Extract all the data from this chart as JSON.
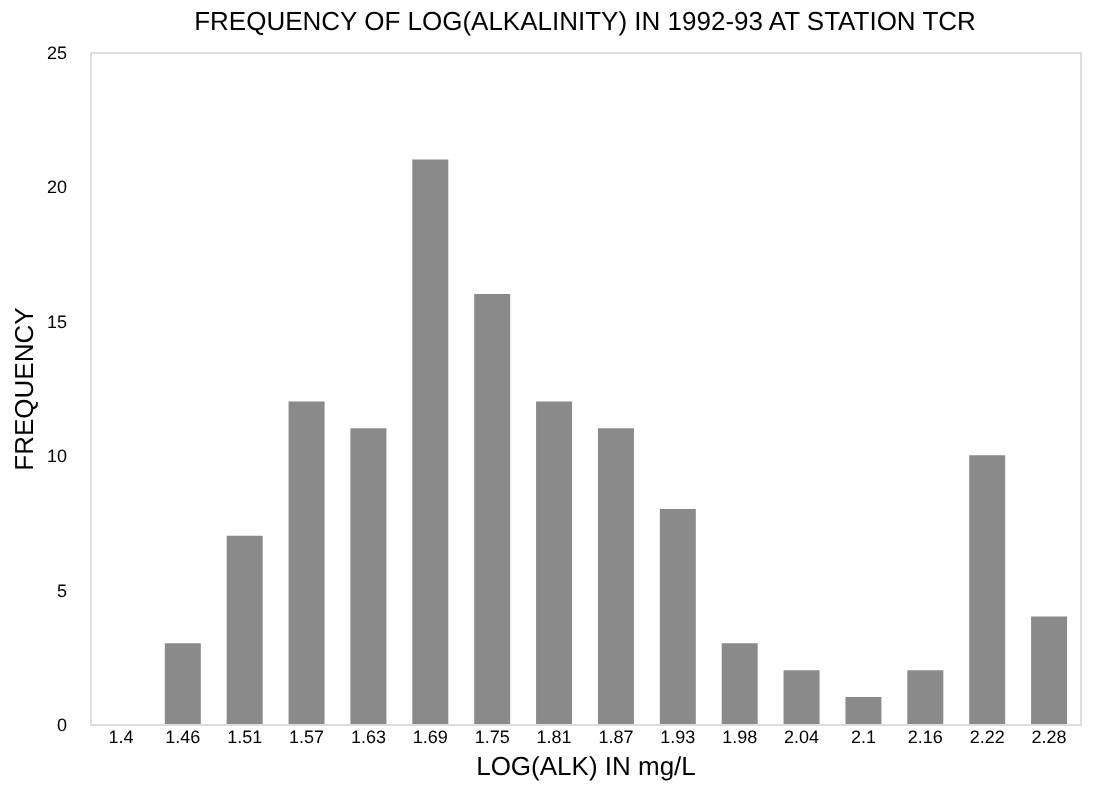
{
  "chart_data": {
    "type": "bar",
    "title": "FREQUENCY OF LOG(ALKALINITY) IN 1992-93 AT STATION TCR",
    "xlabel": "LOG(ALK) IN mg/L",
    "ylabel": "FREQUENCY",
    "categories": [
      "1.4",
      "1.46",
      "1.51",
      "1.57",
      "1.63",
      "1.69",
      "1.75",
      "1.81",
      "1.87",
      "1.93",
      "1.98",
      "2.04",
      "2.1",
      "2.16",
      "2.22",
      "2.28"
    ],
    "values": [
      0,
      3,
      7,
      12,
      11,
      21,
      16,
      12,
      11,
      8,
      3,
      2,
      1,
      2,
      10,
      4
    ],
    "color": "#8a8a8a",
    "ylim": [
      0,
      25
    ],
    "yticks": [
      0,
      5,
      10,
      15,
      20,
      25
    ],
    "grid": false
  }
}
